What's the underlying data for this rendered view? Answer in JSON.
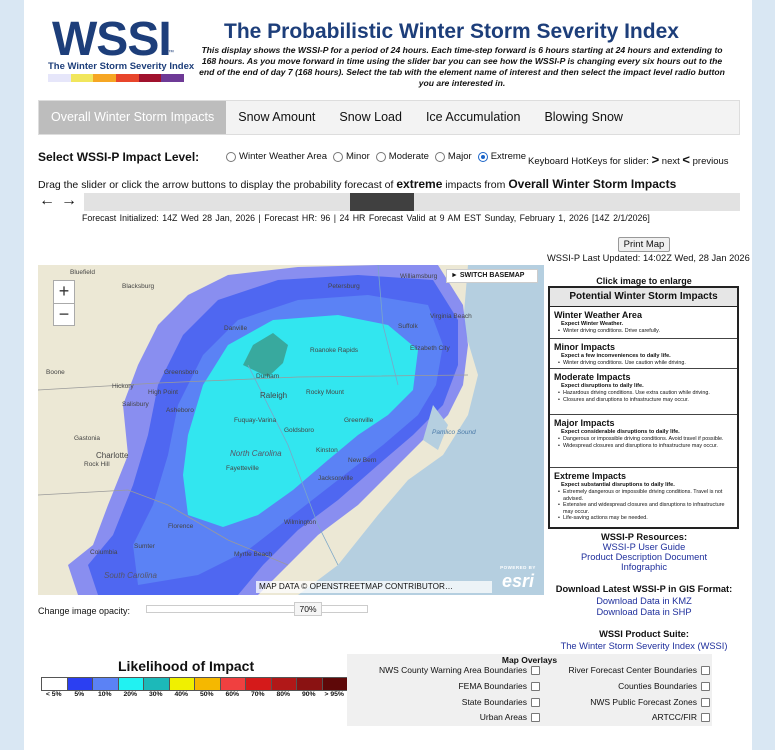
{
  "header": {
    "logo_text": "WSSI",
    "logo_tm": "™",
    "logo_subtitle": "The Winter Storm Severity Index",
    "logo_colors": [
      "#e6e6fa",
      "#f1e65c",
      "#f6a623",
      "#e8452b",
      "#a0112d",
      "#6e3a96"
    ],
    "title": "The Probabilistic Winter Storm Severity Index",
    "intro": "This display shows the WSSI-P for a period of 24 hours. Each time-step forward is 6 hours starting at 24 hours and extending to 168 hours. As you move forward in time using the slider bar you can see how the WSSI-P is changing every six hours out to the end of the end of day 7 (168 hours). Select the tab with the element name of interest and then select the impact level radio button you are interested in."
  },
  "tabs": [
    {
      "label": "Overall Winter Storm Impacts",
      "active": true
    },
    {
      "label": "Snow Amount",
      "active": false
    },
    {
      "label": "Snow Load",
      "active": false
    },
    {
      "label": "Ice Accumulation",
      "active": false
    },
    {
      "label": "Blowing Snow",
      "active": false
    }
  ],
  "impact_level": {
    "label": "Select WSSI-P Impact Level:",
    "options": [
      {
        "label": "Winter Weather Area",
        "selected": false
      },
      {
        "label": "Minor",
        "selected": false
      },
      {
        "label": "Moderate",
        "selected": false
      },
      {
        "label": "Major",
        "selected": false
      },
      {
        "label": "Extreme",
        "selected": true
      }
    ],
    "hotkeys_prefix": "Keyboard HotKeys for slider:",
    "hotkey_next": ">",
    "hotkey_next_label": "next",
    "hotkey_prev": "<",
    "hotkey_prev_label": "previous"
  },
  "instruction": {
    "prefix": "Drag the slider or click the arrow buttons to display the probability forecast of",
    "level": "extreme",
    "middle": "impacts from",
    "element": "Overall Winter Storm Impacts"
  },
  "slider": {
    "prev_arrow": "←",
    "next_arrow": "→",
    "position_fraction": 0.45
  },
  "forecast_info": "Forecast Initialized: 14Z Wed 28 Jan, 2026     | Forecast HR: 96  |     24 HR Forecast Valid at 9 AM EST Sunday, February 1, 2026 [14Z 2/1/2026]",
  "print_label": "Print Map",
  "last_updated": "WSSI-P Last Updated: 14:02Z Wed, 28 Jan 2026",
  "map": {
    "zoom_in": "+",
    "zoom_out": "−",
    "basemap_button": "► SWITCH BASEMAP",
    "attribution": "MAP DATA © OPENSTREETMAP CONTRIBUTOR…",
    "esri_powered": "POWERED BY",
    "esri_logo": "esri",
    "places": {
      "bluefield": "Bluefield",
      "blacksburg": "Blacksburg",
      "petersburg": "Petersburg",
      "williamsburg": "Williamsburg",
      "danville": "Danville",
      "suffolk": "Suffolk",
      "virginia_beach": "Virginia Beach",
      "roanoke_rapids": "Roanoke Rapids",
      "elizabeth_city": "Elizabeth City",
      "boone": "Boone",
      "greensboro": "Greensboro",
      "durham": "Durham",
      "rocky_mount": "Rocky Mount",
      "hickory": "Hickory",
      "high_point": "High Point",
      "raleigh": "Raleigh",
      "salisbury": "Salisbury",
      "asheboro": "Asheboro",
      "fuquay_varina": "Fuquay-Varina",
      "greenville": "Greenville",
      "goldsboro": "Goldsboro",
      "pamlico_sound": "Pamlico Sound",
      "gastonia": "Gastonia",
      "charlotte": "Charlotte",
      "kinston": "Kinston",
      "rock_hill": "Rock Hill",
      "north_carolina": "North Carolina",
      "new_bern": "New Bern",
      "fayetteville": "Fayetteville",
      "jacksonville": "Jacksonville",
      "wilmington": "Wilmington",
      "florence": "Florence",
      "columbia": "Columbia",
      "sumter": "Sumter",
      "myrtle_beach": "Myrtle Beach",
      "south_carolina": "South Carolina"
    }
  },
  "right": {
    "click_enlarge": "Click image to enlarge",
    "impacts_title": "Potential Winter Storm Impacts",
    "impacts": [
      {
        "title": "Winter Weather Area",
        "expect": "Expect Winter Weather.",
        "bullets": [
          "Winter driving conditions. Drive carefully."
        ]
      },
      {
        "title": "Minor Impacts",
        "expect": "Expect a few inconveniences to daily life.",
        "bullets": [
          "Winter driving conditions. Use caution while driving."
        ]
      },
      {
        "title": "Moderate Impacts",
        "expect": "Expect disruptions to daily life.",
        "bullets": [
          "Hazardous driving conditions. Use extra caution while driving.",
          "Closures and disruptions to infrastructure may occur."
        ]
      },
      {
        "title": "Major Impacts",
        "expect": "Expect considerable disruptions to daily life.",
        "bullets": [
          "Dangerous or impossible driving conditions. Avoid travel if possible.",
          "Widespread closures and disruptions to infrastructure may occur."
        ]
      },
      {
        "title": "Extreme Impacts",
        "expect": "Expect substantial disruptions to daily life.",
        "bullets": [
          "Extremely dangerous or impossible driving conditions. Travel is not advised.",
          "Extensive and widespread closures and disruptions to infrastructure may occur.",
          "Life-saving actions may be needed."
        ]
      }
    ],
    "resources_title": "WSSI-P Resources:",
    "resources": [
      "WSSI-P User Guide",
      "Product Description Document",
      "Infographic"
    ],
    "gis_title": "Download Latest WSSI-P in GIS Format:",
    "gis_links": [
      "Download Data in KMZ",
      "Download Data in SHP"
    ],
    "suite_title": "WSSI Product Suite:",
    "suite_link": "The Winter Storm Severity Index (WSSI)"
  },
  "opacity": {
    "label": "Change image opacity:",
    "value": "70%"
  },
  "legend": {
    "title": "Likelihood of Impact",
    "labels": [
      "< 5%",
      "5%",
      "10%",
      "20%",
      "30%",
      "40%",
      "50%",
      "60%",
      "70%",
      "80%",
      "90%",
      "> 95%"
    ],
    "colors": [
      "#ffffff",
      "#2b3ff2",
      "#5b82f5",
      "#21f2f2",
      "#1cb9b9",
      "#f0f000",
      "#f5b800",
      "#f04040",
      "#d51a1a",
      "#b11818",
      "#8a1212",
      "#5e0808"
    ]
  },
  "overlays": {
    "title": "Map Overlays",
    "left": [
      "NWS County Warning Area Boundaries",
      "FEMA Boundaries",
      "State Boundaries",
      "Urban Areas"
    ],
    "right": [
      "River Forecast Center Boundaries",
      "Counties Boundaries",
      "NWS Public Forecast Zones",
      "ARTCC/FIR"
    ]
  }
}
